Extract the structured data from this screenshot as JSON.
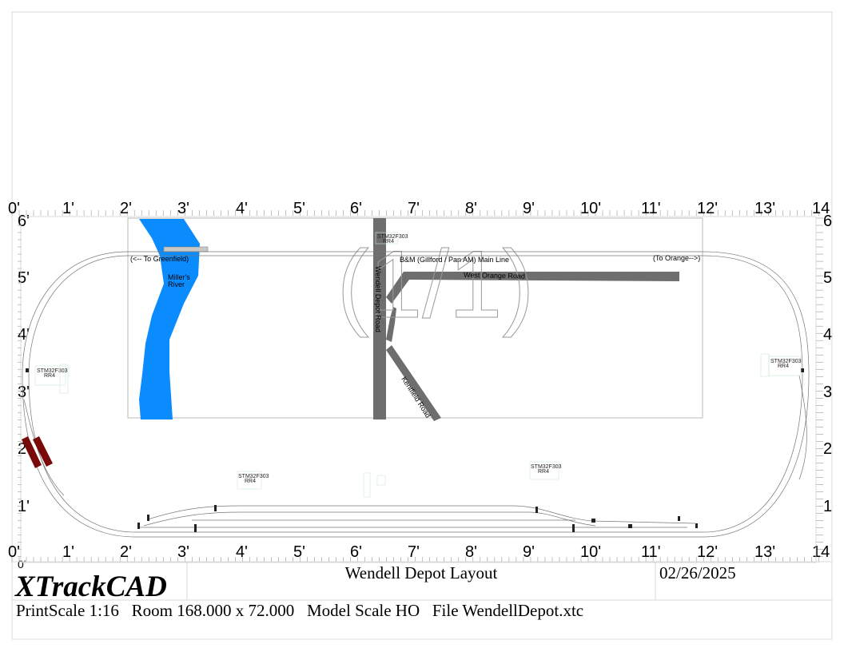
{
  "ruler": {
    "top_labels": [
      "0'",
      "1'",
      "2'",
      "3'",
      "4'",
      "5'",
      "6'",
      "7'",
      "8'",
      "9'",
      "10'",
      "11'",
      "12'",
      "13'",
      "14"
    ],
    "bottom_labels": [
      "0'",
      "1'",
      "2'",
      "3'",
      "4'",
      "5'",
      "6'",
      "7'",
      "8'",
      "9'",
      "10'",
      "11'",
      "12'",
      "13'",
      "14"
    ],
    "left_labels": [
      "6'",
      "5'",
      "4'",
      "3'",
      "2'",
      "1'",
      "0'"
    ],
    "right_labels": [
      "6",
      "5",
      "4",
      "3",
      "2",
      "1"
    ]
  },
  "layout": {
    "page_marker": "(1/1)",
    "labels": {
      "to_greenfield": "(<-- To Greenfield)",
      "to_orange": "(To Orange-->)",
      "mainline": "B&M (Gillford / Pan AM) Main Line",
      "millers_river_1": "Miller's",
      "millers_river_2": "River",
      "west_orange_road": "West Orange Road",
      "wendell_depot_road": "Wendell Depot Road",
      "kentfield_road": "Kentfield Road"
    },
    "boards": [
      {
        "id": "b1",
        "line1": "STM32F303",
        "line2": "RR4"
      },
      {
        "id": "b2",
        "line1": "STM32F303",
        "line2": "RR4"
      },
      {
        "id": "b3",
        "line1": "STM32F303",
        "line2": "RR4"
      },
      {
        "id": "b4",
        "line1": "STM32F303",
        "line2": "RR4"
      },
      {
        "id": "b5",
        "line1": "STM32F303",
        "line2": "RR4"
      }
    ],
    "colors": {
      "river": "#0a8cff",
      "road": "#6e6e6e",
      "rolling_stock": "#7a0a0a",
      "track": "#777777"
    }
  },
  "titleblock": {
    "logo": "XTrackCAD",
    "title": "Wendell Depot Layout",
    "date": "02/26/2025",
    "info": "PrintScale 1:16   Room 168.000 x 72.000   Model Scale HO   File WendellDepot.xtc"
  }
}
